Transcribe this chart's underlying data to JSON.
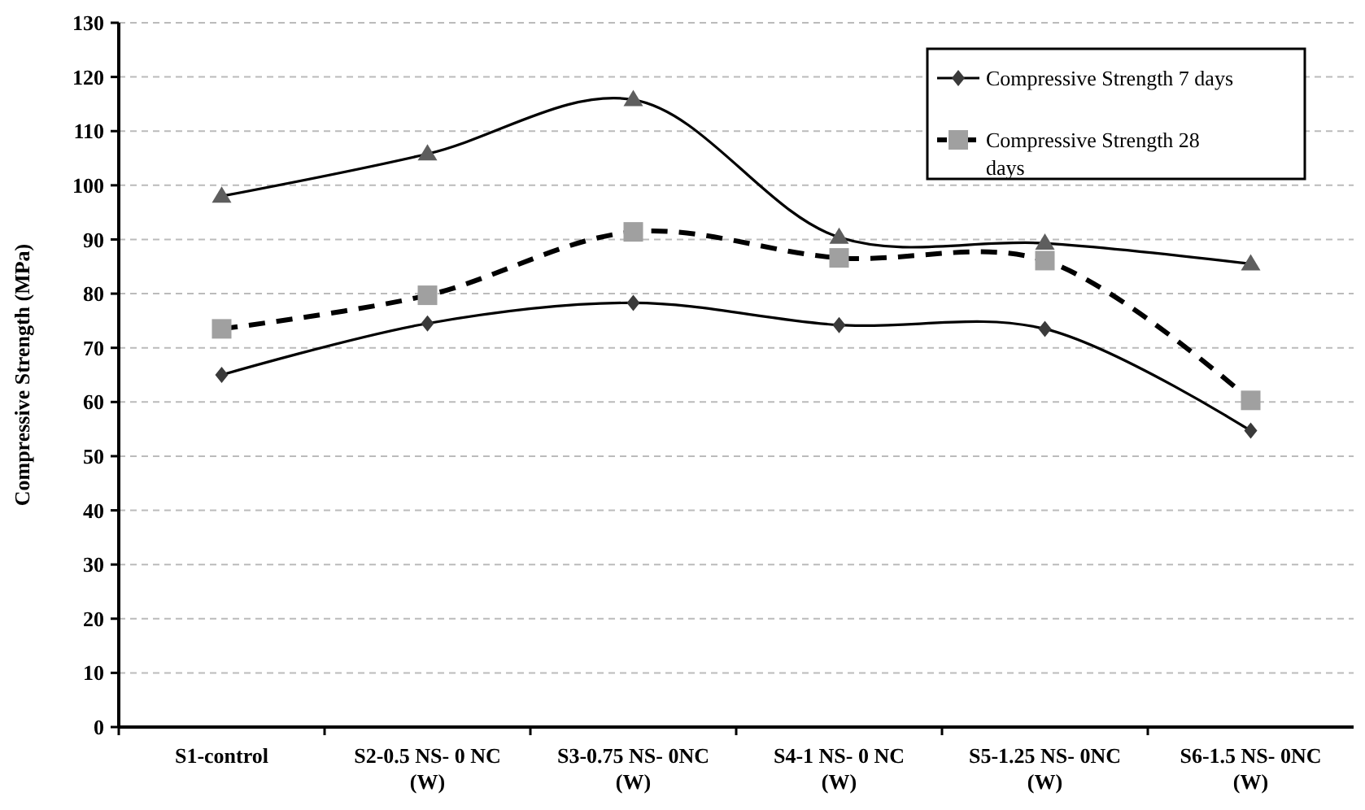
{
  "chart_data": {
    "type": "line",
    "ylabel": "Compressive Strength (MPa)",
    "categories": [
      "S1-control",
      "S2-0.5 NS- 0 NC\n(W)",
      "S3-0.75 NS- 0NC\n(W)",
      "S4-1 NS- 0 NC\n(W)",
      "S5-1.25 NS- 0NC\n(W)",
      "S6-1.5 NS- 0NC\n(W)"
    ],
    "series": [
      {
        "name": "Compressive Strength 7 days",
        "color": "#3a3a3a",
        "marker": "diamond",
        "line_style": "solid",
        "values": [
          65,
          74.5,
          78.3,
          74.2,
          73.5,
          54.7
        ]
      },
      {
        "name": "Compressive Strength 28 days",
        "color": "#a0a0a0",
        "marker": "square",
        "line_style": "dashed",
        "values": [
          73.5,
          79.7,
          91.4,
          86.6,
          86.1,
          60.3
        ]
      },
      {
        "color": "#5e5e5e",
        "marker": "triangle",
        "line_style": "solid",
        "values": [
          98,
          105.8,
          115.8,
          90.4,
          89.3,
          85.5
        ]
      }
    ],
    "ylim": [
      0,
      130
    ],
    "yticks": [
      0,
      10,
      20,
      30,
      40,
      50,
      60,
      70,
      80,
      90,
      100,
      110,
      120,
      130
    ],
    "grid": "y",
    "legend": "top right"
  }
}
